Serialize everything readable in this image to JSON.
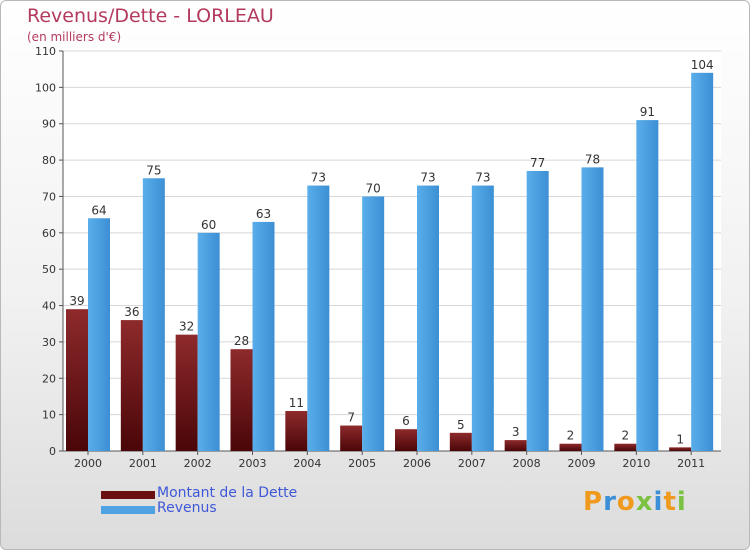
{
  "chart_data": {
    "type": "bar",
    "title": "Revenus/Dette - LORLEAU",
    "subtitle": "(en milliers d'€)",
    "categories": [
      "2000",
      "2001",
      "2002",
      "2003",
      "2004",
      "2005",
      "2006",
      "2007",
      "2008",
      "2009",
      "2010",
      "2011"
    ],
    "series": [
      {
        "name": "Montant de la Dette",
        "color": "#7a1a1c",
        "values": [
          39,
          36,
          32,
          28,
          11,
          7,
          6,
          5,
          3,
          2,
          2,
          1
        ]
      },
      {
        "name": "Revenus",
        "color": "#4fa3e3",
        "values": [
          64,
          75,
          60,
          63,
          73,
          70,
          73,
          73,
          77,
          78,
          91,
          104
        ]
      }
    ],
    "ylim": [
      0,
      110
    ],
    "yticks": [
      0,
      10,
      20,
      30,
      40,
      50,
      60,
      70,
      80,
      90,
      100,
      110
    ],
    "grid": true,
    "legend": "bottom-left"
  },
  "logo": {
    "letters": [
      "P",
      "r",
      "o",
      "x",
      "i",
      "t",
      "i"
    ],
    "colors": [
      "#f09a1d",
      "#3a8fd6",
      "#f09a1d",
      "#7cc242",
      "#3a8fd6",
      "#f09a1d",
      "#7cc242"
    ]
  }
}
